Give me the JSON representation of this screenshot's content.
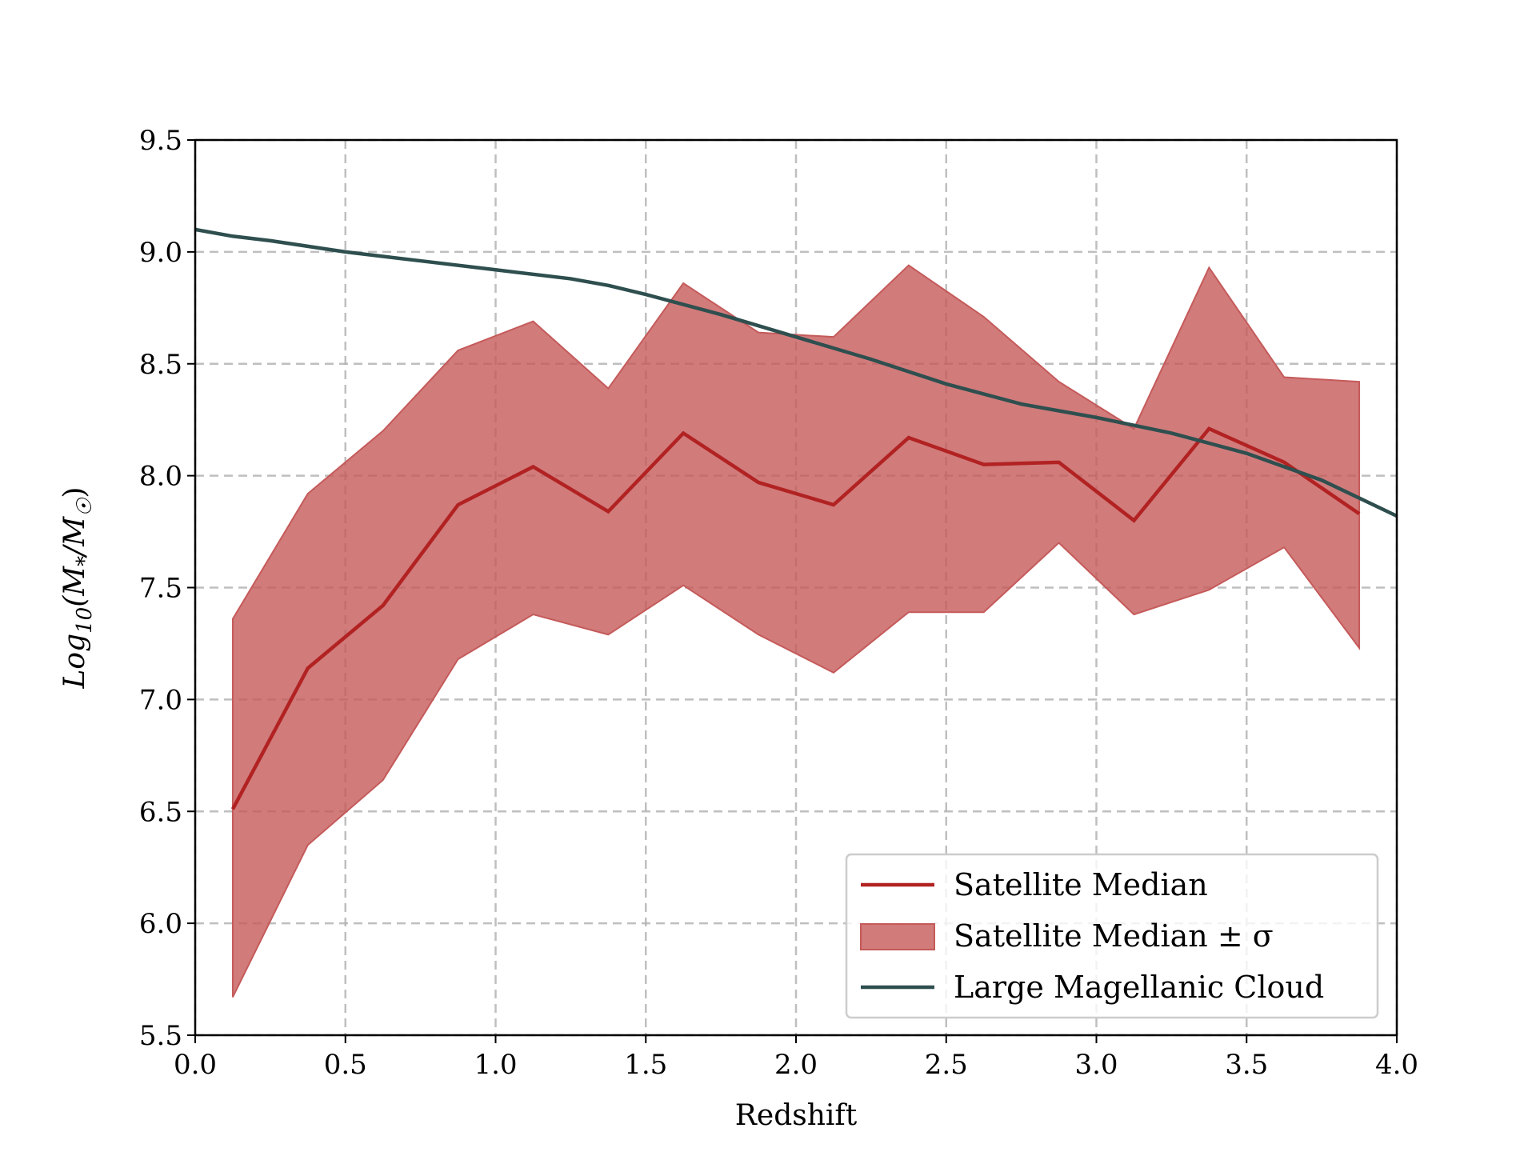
{
  "chart_data": {
    "type": "line",
    "xlabel": "Redshift",
    "ylabel": "Log10(M*/M☉)",
    "xlim": [
      0.0,
      4.0
    ],
    "ylim": [
      5.5,
      9.5
    ],
    "x_ticks": [
      "0.0",
      "0.5",
      "1.0",
      "1.5",
      "2.0",
      "2.5",
      "3.0",
      "3.5",
      "4.0"
    ],
    "y_ticks": [
      "5.5",
      "6.0",
      "6.5",
      "7.0",
      "7.5",
      "8.0",
      "8.5",
      "9.0",
      "9.5"
    ],
    "grid": true,
    "legend_position": "lower-right",
    "series": [
      {
        "name": "Satellite Median",
        "kind": "line",
        "color": "#b22222",
        "x": [
          0.125,
          0.375,
          0.625,
          0.875,
          1.125,
          1.375,
          1.625,
          1.875,
          2.125,
          2.375,
          2.625,
          2.875,
          3.125,
          3.375,
          3.625,
          3.875
        ],
        "y": [
          6.51,
          7.14,
          7.42,
          7.87,
          8.04,
          7.84,
          8.19,
          7.97,
          7.87,
          8.17,
          8.05,
          8.06,
          7.8,
          8.21,
          8.06,
          7.83
        ]
      },
      {
        "name": "Satellite Median ± σ",
        "kind": "band",
        "color": "#c55a5a",
        "x": [
          0.125,
          0.375,
          0.625,
          0.875,
          1.125,
          1.375,
          1.625,
          1.875,
          2.125,
          2.375,
          2.625,
          2.875,
          3.125,
          3.375,
          3.625,
          3.875
        ],
        "lower": [
          5.67,
          6.35,
          6.64,
          7.18,
          7.38,
          7.29,
          7.51,
          7.29,
          7.12,
          7.39,
          7.39,
          7.7,
          7.38,
          7.49,
          7.68,
          7.23
        ],
        "upper": [
          7.36,
          7.92,
          8.2,
          8.56,
          8.69,
          8.39,
          8.86,
          8.64,
          8.62,
          8.94,
          8.71,
          8.42,
          8.21,
          8.93,
          8.44,
          8.42
        ]
      },
      {
        "name": "Large Magellanic Cloud",
        "kind": "line",
        "color": "#2f4f4f",
        "x": [
          0.0,
          0.125,
          0.25,
          0.5,
          0.75,
          1.0,
          1.25,
          1.375,
          1.5,
          1.75,
          2.0,
          2.25,
          2.5,
          2.75,
          3.0,
          3.25,
          3.5,
          3.75,
          4.0
        ],
        "y": [
          9.1,
          9.07,
          9.05,
          9.0,
          8.96,
          8.92,
          8.88,
          8.85,
          8.81,
          8.72,
          8.62,
          8.52,
          8.41,
          8.32,
          8.26,
          8.19,
          8.1,
          7.98,
          7.82
        ]
      }
    ]
  }
}
